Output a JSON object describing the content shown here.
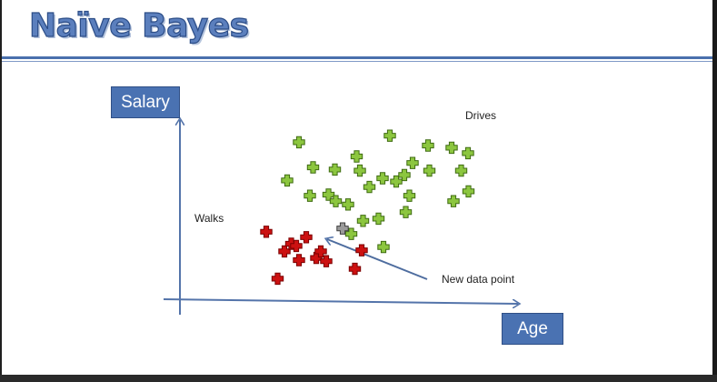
{
  "slide": {
    "title": "Naïve Bayes"
  },
  "axes": {
    "y_label": "Salary",
    "x_label": "Age"
  },
  "labels": {
    "walks": "Walks",
    "drives": "Drives",
    "new_point": "New data point"
  },
  "colors": {
    "walks": "#cc1111",
    "drives": "#8cc63f",
    "new_point": "#9a9a9a",
    "axis": "#5474aa",
    "title": "#5b7fbd"
  },
  "chart_data": {
    "type": "scatter",
    "xlabel": "Age",
    "ylabel": "Salary",
    "grid": false,
    "series": [
      {
        "name": "Walks",
        "marker": "plus-red",
        "points": [
          [
            19,
            7.1
          ],
          [
            21.5,
            2.8
          ],
          [
            23,
            5.3
          ],
          [
            24.5,
            6.0
          ],
          [
            25.6,
            5.8
          ],
          [
            26.2,
            4.5
          ],
          [
            27.8,
            6.6
          ],
          [
            30,
            4.7
          ],
          [
            31,
            5.3
          ],
          [
            32.2,
            4.4
          ],
          [
            38.5,
            3.7
          ],
          [
            40,
            5.4
          ]
        ]
      },
      {
        "name": "Drives",
        "marker": "plus-green",
        "points": [
          [
            23.6,
            11.8
          ],
          [
            26.2,
            15.3
          ],
          [
            29.3,
            13.0
          ],
          [
            34.1,
            12.8
          ],
          [
            38.9,
            14.0
          ],
          [
            46.2,
            15.9
          ],
          [
            28.6,
            10.4
          ],
          [
            32.7,
            10.5
          ],
          [
            37.0,
            9.6
          ],
          [
            41.7,
            11.2
          ],
          [
            34.3,
            9.9
          ],
          [
            37.7,
            6.9
          ],
          [
            40.3,
            8.1
          ],
          [
            43.7,
            8.3
          ],
          [
            47.6,
            11.7
          ],
          [
            49.7,
            8.9
          ],
          [
            49.4,
            12.3
          ],
          [
            51.2,
            13.4
          ],
          [
            50.5,
            10.4
          ],
          [
            54.9,
            12.7
          ],
          [
            59.8,
            14.8
          ],
          [
            63.4,
            14.3
          ],
          [
            61.9,
            12.7
          ],
          [
            63.5,
            10.8
          ],
          [
            60.2,
            9.9
          ],
          [
            54.6,
            15.0
          ],
          [
            44.6,
            12.0
          ],
          [
            44.8,
            5.7
          ],
          [
            39.6,
            12.7
          ]
        ]
      },
      {
        "name": "New data point",
        "marker": "plus-gray",
        "points": [
          [
            35.8,
            7.4
          ]
        ]
      }
    ]
  }
}
